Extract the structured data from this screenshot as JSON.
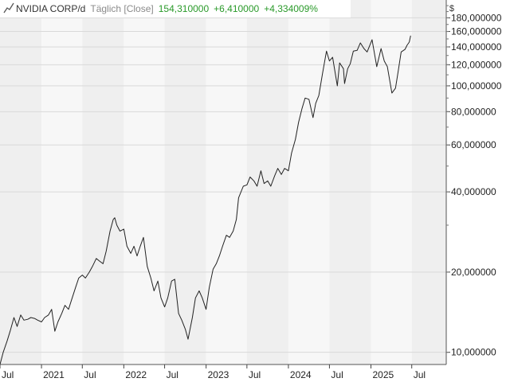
{
  "header": {
    "title": "NVIDIA CORP/d",
    "period": "Täglich [Close]",
    "last": "154,310000",
    "change": "+6,410000",
    "change_pct": "+4,334009%"
  },
  "currency": "$",
  "colors": {
    "line": "#222222",
    "positive": "#2a9a2a",
    "band_dark": "#efefef",
    "band_light": "#f7f7f7",
    "grid": "#d9d9d9"
  },
  "chart_data": {
    "type": "line",
    "y_scale": "log",
    "ylim": [
      9,
      210
    ],
    "xlim": [
      "2020-07-01",
      "2025-12-01"
    ],
    "y_ticks": [
      {
        "value": 10,
        "label": "10,000000"
      },
      {
        "value": 20,
        "label": "20,000000"
      },
      {
        "value": 40,
        "label": "40,000000"
      },
      {
        "value": 60,
        "label": "60,000000"
      },
      {
        "value": 80,
        "label": "80,000000"
      },
      {
        "value": 100,
        "label": "100,000000"
      },
      {
        "value": 120,
        "label": "120,000000"
      },
      {
        "value": 140,
        "label": "140,000000"
      },
      {
        "value": 160,
        "label": "160,000000"
      },
      {
        "value": 180,
        "label": "180,000000"
      }
    ],
    "x_ticks": [
      {
        "date": "2020-07-01",
        "label": "Jul"
      },
      {
        "date": "2021-01-01",
        "label": "2021"
      },
      {
        "date": "2021-07-01",
        "label": "Jul"
      },
      {
        "date": "2022-01-01",
        "label": "2022"
      },
      {
        "date": "2022-07-01",
        "label": "Jul"
      },
      {
        "date": "2023-01-01",
        "label": "2023"
      },
      {
        "date": "2023-07-01",
        "label": "Jul"
      },
      {
        "date": "2024-01-01",
        "label": "2024"
      },
      {
        "date": "2024-07-01",
        "label": "Jul"
      },
      {
        "date": "2025-01-01",
        "label": "2025"
      },
      {
        "date": "2025-07-01",
        "label": "Jul"
      }
    ],
    "series": [
      {
        "points": [
          [
            "2020-07-01",
            9.0
          ],
          [
            "2020-07-15",
            10.0
          ],
          [
            "2020-08-01",
            11.0
          ],
          [
            "2020-08-15",
            12.0
          ],
          [
            "2020-09-01",
            13.5
          ],
          [
            "2020-09-15",
            12.5
          ],
          [
            "2020-10-01",
            13.8
          ],
          [
            "2020-10-15",
            13.2
          ],
          [
            "2020-11-01",
            13.3
          ],
          [
            "2020-11-15",
            13.5
          ],
          [
            "2020-12-01",
            13.4
          ],
          [
            "2020-12-15",
            13.2
          ],
          [
            "2021-01-01",
            13.0
          ],
          [
            "2021-01-15",
            13.5
          ],
          [
            "2021-02-01",
            13.8
          ],
          [
            "2021-02-15",
            14.5
          ],
          [
            "2021-03-01",
            12.0
          ],
          [
            "2021-03-15",
            13.0
          ],
          [
            "2021-04-01",
            14.0
          ],
          [
            "2021-04-15",
            15.0
          ],
          [
            "2021-05-01",
            14.5
          ],
          [
            "2021-05-15",
            15.8
          ],
          [
            "2021-06-01",
            17.5
          ],
          [
            "2021-06-15",
            19.0
          ],
          [
            "2021-07-01",
            19.5
          ],
          [
            "2021-07-15",
            19.0
          ],
          [
            "2021-08-01",
            20.0
          ],
          [
            "2021-08-15",
            21.0
          ],
          [
            "2021-09-01",
            22.5
          ],
          [
            "2021-09-15",
            22.0
          ],
          [
            "2021-10-01",
            21.5
          ],
          [
            "2021-10-15",
            24.0
          ],
          [
            "2021-11-01",
            28.5
          ],
          [
            "2021-11-15",
            31.5
          ],
          [
            "2021-11-22",
            32.0
          ],
          [
            "2021-12-01",
            30.0
          ],
          [
            "2021-12-15",
            28.5
          ],
          [
            "2022-01-01",
            29.0
          ],
          [
            "2022-01-15",
            25.0
          ],
          [
            "2022-02-01",
            23.5
          ],
          [
            "2022-02-15",
            25.0
          ],
          [
            "2022-03-01",
            23.0
          ],
          [
            "2022-03-15",
            25.0
          ],
          [
            "2022-03-29",
            27.0
          ],
          [
            "2022-04-15",
            21.0
          ],
          [
            "2022-05-01",
            19.0
          ],
          [
            "2022-05-15",
            17.0
          ],
          [
            "2022-06-01",
            18.5
          ],
          [
            "2022-06-15",
            16.0
          ],
          [
            "2022-07-01",
            14.8
          ],
          [
            "2022-07-15",
            16.0
          ],
          [
            "2022-08-01",
            18.5
          ],
          [
            "2022-08-15",
            18.8
          ],
          [
            "2022-09-01",
            14.0
          ],
          [
            "2022-09-15",
            13.2
          ],
          [
            "2022-10-01",
            12.2
          ],
          [
            "2022-10-13",
            11.2
          ],
          [
            "2022-11-01",
            13.5
          ],
          [
            "2022-11-15",
            16.0
          ],
          [
            "2022-12-01",
            17.0
          ],
          [
            "2022-12-15",
            16.0
          ],
          [
            "2023-01-01",
            14.5
          ],
          [
            "2023-01-15",
            17.5
          ],
          [
            "2023-02-01",
            20.5
          ],
          [
            "2023-02-15",
            21.5
          ],
          [
            "2023-03-01",
            23.0
          ],
          [
            "2023-03-15",
            25.0
          ],
          [
            "2023-04-01",
            27.5
          ],
          [
            "2023-04-15",
            27.0
          ],
          [
            "2023-05-01",
            28.5
          ],
          [
            "2023-05-15",
            31.5
          ],
          [
            "2023-05-25",
            38.0
          ],
          [
            "2023-06-15",
            42.0
          ],
          [
            "2023-07-01",
            42.5
          ],
          [
            "2023-07-15",
            45.5
          ],
          [
            "2023-08-01",
            44.0
          ],
          [
            "2023-08-15",
            42.0
          ],
          [
            "2023-09-01",
            48.0
          ],
          [
            "2023-09-15",
            43.0
          ],
          [
            "2023-10-01",
            44.0
          ],
          [
            "2023-10-15",
            42.0
          ],
          [
            "2023-11-01",
            46.0
          ],
          [
            "2023-11-15",
            49.0
          ],
          [
            "2023-12-01",
            46.5
          ],
          [
            "2023-12-15",
            49.0
          ],
          [
            "2024-01-01",
            48.0
          ],
          [
            "2024-01-15",
            56.0
          ],
          [
            "2024-02-01",
            63.0
          ],
          [
            "2024-02-15",
            73.0
          ],
          [
            "2024-03-01",
            82.0
          ],
          [
            "2024-03-15",
            90.0
          ],
          [
            "2024-04-01",
            89.0
          ],
          [
            "2024-04-19",
            76.0
          ],
          [
            "2024-05-01",
            86.0
          ],
          [
            "2024-05-15",
            92.0
          ],
          [
            "2024-06-01",
            112.0
          ],
          [
            "2024-06-18",
            135.0
          ],
          [
            "2024-07-01",
            124.0
          ],
          [
            "2024-07-15",
            128.0
          ],
          [
            "2024-08-05",
            100.0
          ],
          [
            "2024-08-15",
            122.0
          ],
          [
            "2024-09-01",
            116.0
          ],
          [
            "2024-09-06",
            102.0
          ],
          [
            "2024-09-20",
            116.0
          ],
          [
            "2024-10-01",
            121.0
          ],
          [
            "2024-10-15",
            135.0
          ],
          [
            "2024-11-01",
            136.0
          ],
          [
            "2024-11-15",
            145.0
          ],
          [
            "2024-12-01",
            138.0
          ],
          [
            "2024-12-15",
            134.0
          ],
          [
            "2025-01-06",
            149.0
          ],
          [
            "2025-01-27",
            118.0
          ],
          [
            "2025-02-15",
            138.0
          ],
          [
            "2025-03-01",
            124.0
          ],
          [
            "2025-03-15",
            118.0
          ],
          [
            "2025-04-04",
            94.0
          ],
          [
            "2025-04-20",
            98.0
          ],
          [
            "2025-05-01",
            112.0
          ],
          [
            "2025-05-15",
            134.0
          ],
          [
            "2025-06-01",
            137.0
          ],
          [
            "2025-06-10",
            142.0
          ],
          [
            "2025-06-20",
            146.0
          ],
          [
            "2025-06-26",
            154.31
          ]
        ]
      }
    ]
  }
}
